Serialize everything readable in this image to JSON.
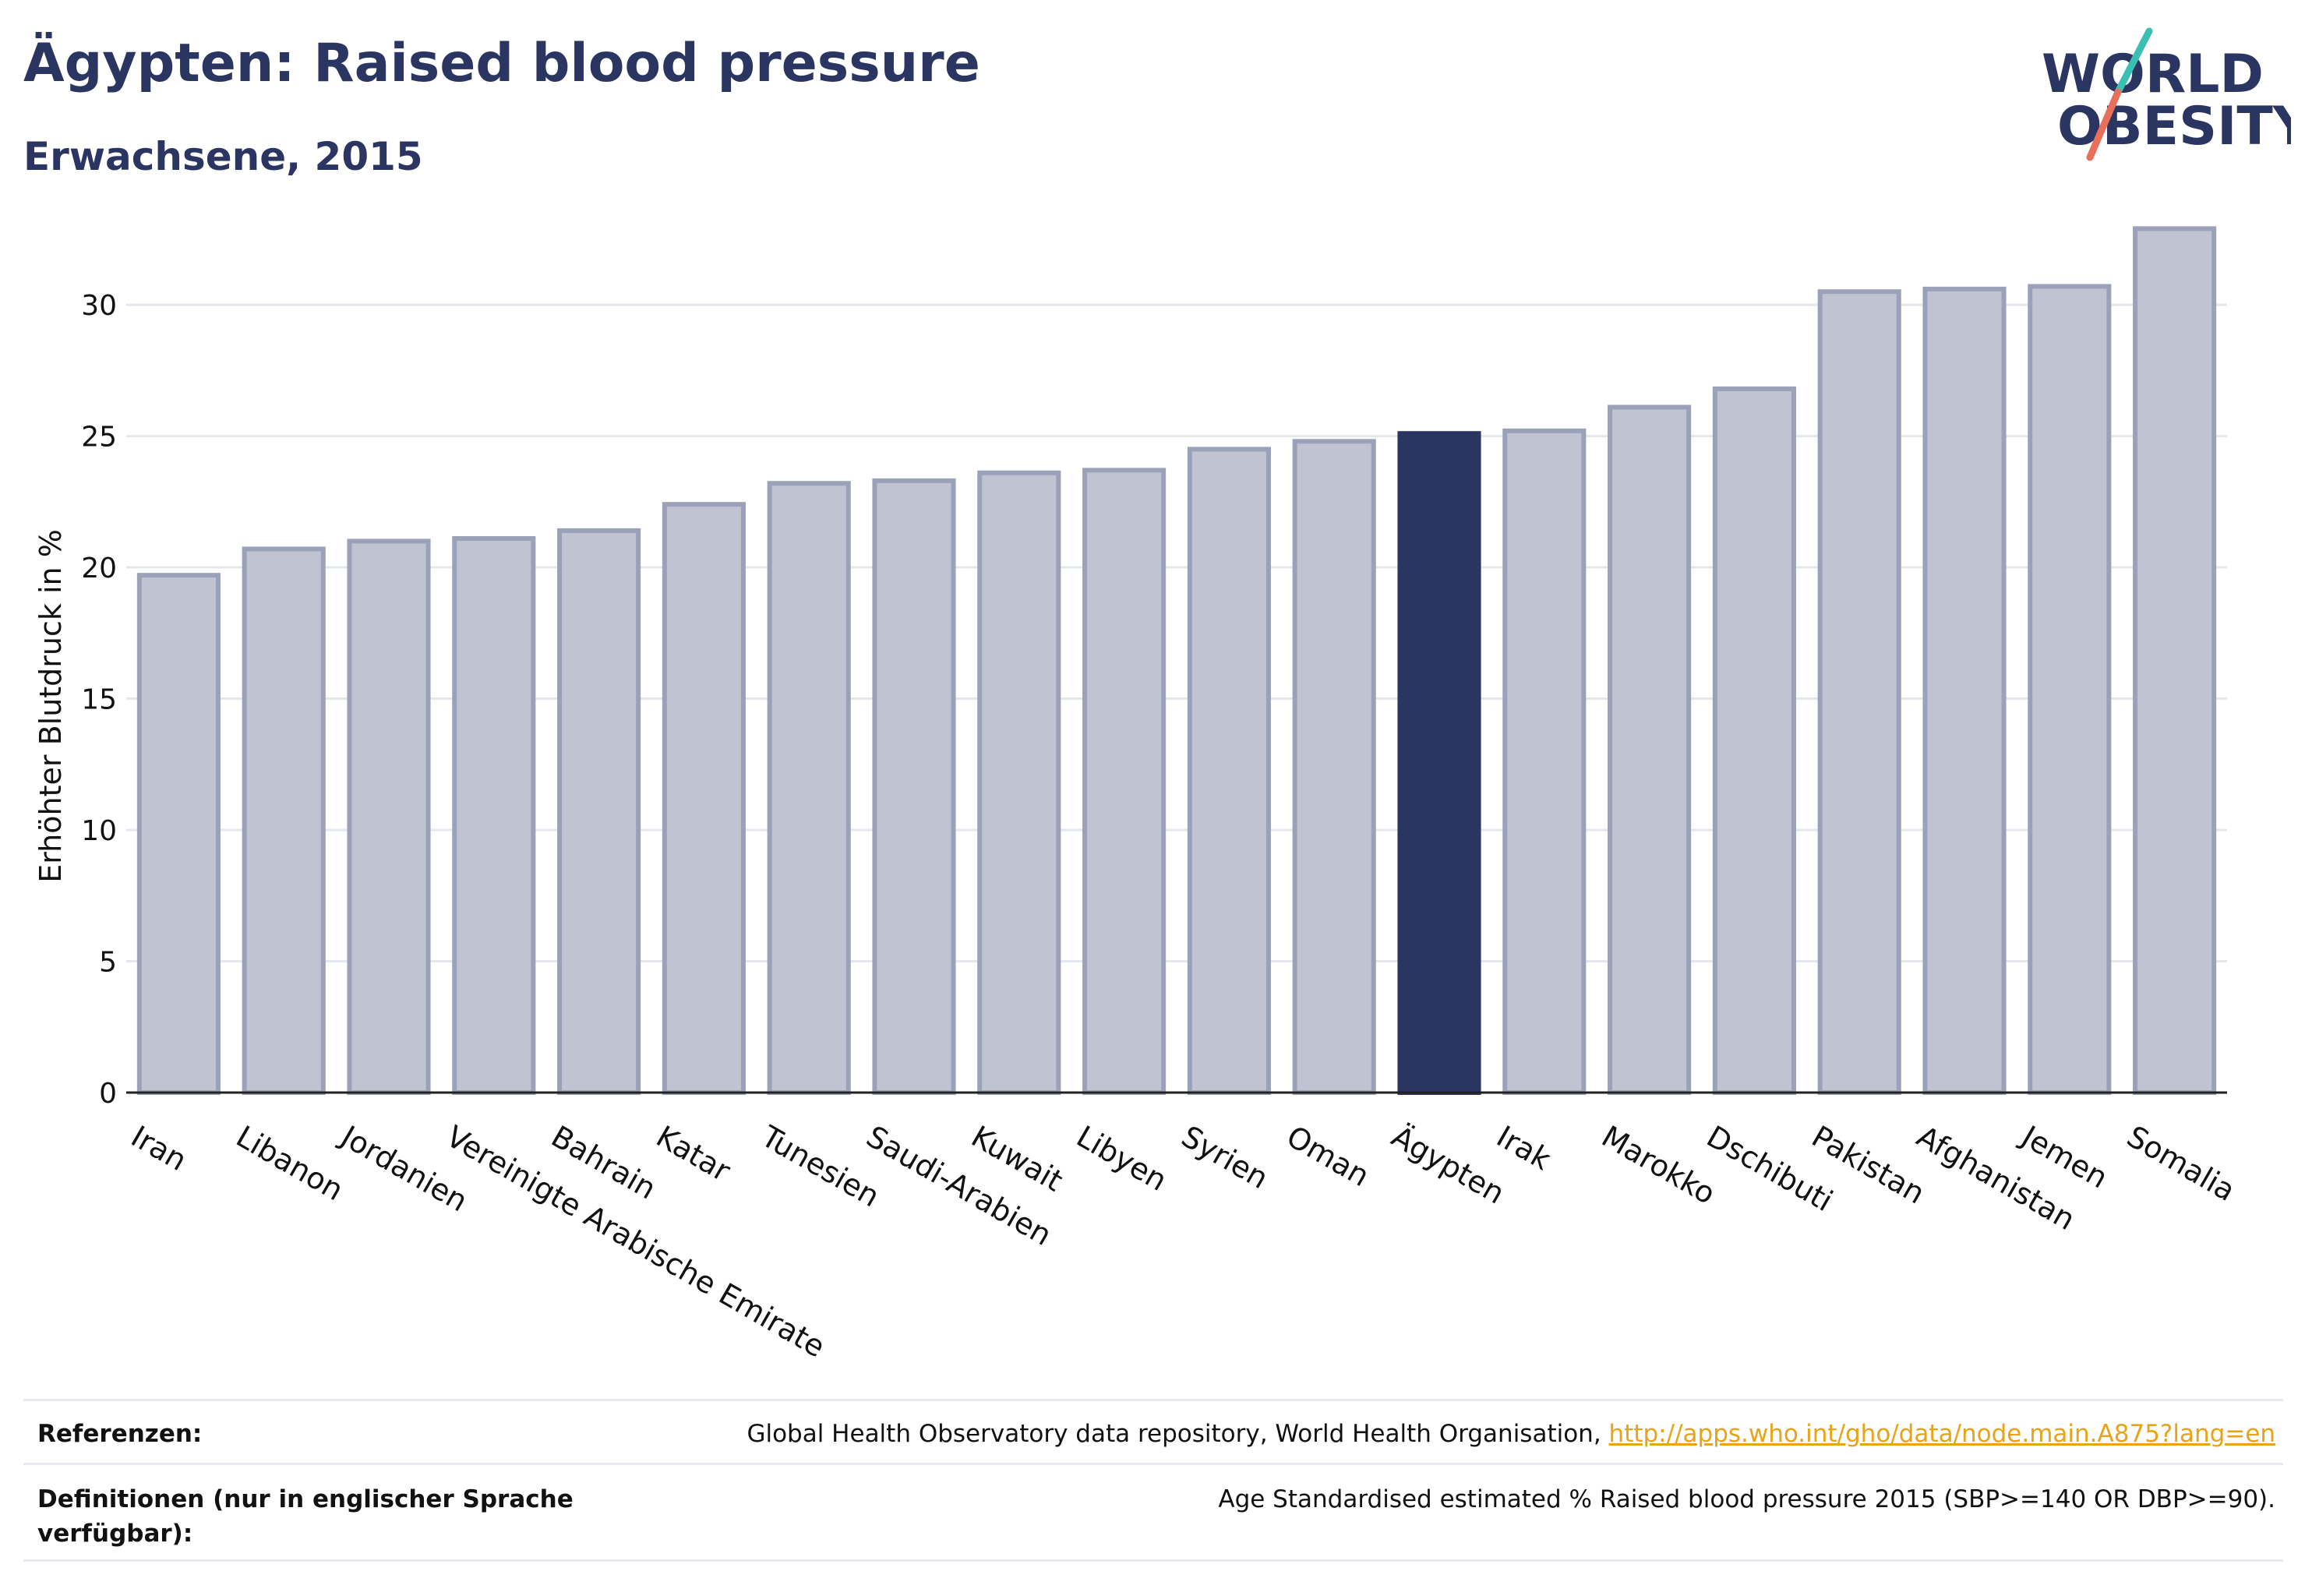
{
  "header": {
    "title": "Ägypten: Raised blood pressure",
    "subtitle": "Erwachsene, 2015"
  },
  "logo": {
    "line1": "WORLD",
    "line2": "OBESITY",
    "accent_teal": "#3bbfb3",
    "accent_coral": "#e8705a",
    "text_color": "#2b3561"
  },
  "chart_data": {
    "type": "bar",
    "title": "Ägypten: Raised blood pressure",
    "subtitle": "Erwachsene, 2015",
    "xlabel": "",
    "ylabel": "Erhöhter Blutdruck in %",
    "ylim": [
      0,
      33
    ],
    "yticks": [
      0,
      5,
      10,
      15,
      20,
      25,
      30
    ],
    "grid": true,
    "highlight": "Ägypten",
    "colors": {
      "bar": "#c0c4d2",
      "bar_border": "#9aa1b8",
      "highlight": "#2b3561",
      "axis": "#222222",
      "grid": "#e6e7ec"
    },
    "categories": [
      "Iran",
      "Libanon",
      "Jordanien",
      "Vereinigte Arabische Emirate",
      "Bahrain",
      "Katar",
      "Tunesien",
      "Saudi-Arabien",
      "Kuwait",
      "Libyen",
      "Syrien",
      "Oman",
      "Ägypten",
      "Irak",
      "Marokko",
      "Dschibuti",
      "Pakistan",
      "Afghanistan",
      "Jemen",
      "Somalia"
    ],
    "values": [
      19.7,
      20.7,
      21.0,
      21.1,
      21.4,
      22.4,
      23.2,
      23.3,
      23.6,
      23.7,
      24.5,
      24.8,
      25.1,
      25.2,
      26.1,
      26.8,
      30.5,
      30.6,
      30.7,
      32.9
    ]
  },
  "footer": {
    "references_label": "Referenzen:",
    "references_text": "Global Health Observatory data repository, World Health Organisation, ",
    "references_link": "http://apps.who.int/gho/data/node.main.A875?lang=en",
    "definitions_label": "Definitionen (nur in englischer Sprache verfügbar):",
    "definitions_text": "Age Standardised estimated % Raised blood pressure 2015 (SBP>=140 OR DBP>=90)."
  }
}
